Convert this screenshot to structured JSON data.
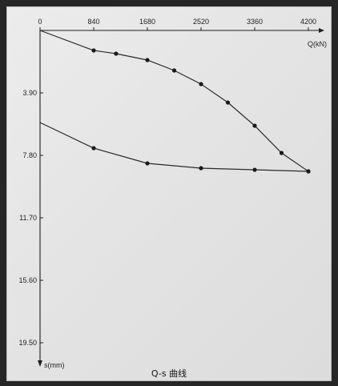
{
  "chart_data": {
    "type": "line",
    "title": "Q-s 曲线",
    "xlabel": "Q(kN)",
    "ylabel": "s(mm)",
    "x_ticks": [
      "0",
      "840",
      "1680",
      "2520",
      "3360",
      "4200"
    ],
    "y_ticks": [
      "3.90",
      "7.80",
      "11.70",
      "15.60",
      "19.50"
    ],
    "xlim": [
      0,
      4200
    ],
    "ylim": [
      0,
      19.5
    ],
    "x_axis_position": "top",
    "y_axis_inverted": true,
    "grid": false,
    "series": [
      {
        "values": [
          {
            "x": 0,
            "y": 0
          },
          {
            "x": 840,
            "y": 1.25
          },
          {
            "x": 1190,
            "y": 1.45
          },
          {
            "x": 1680,
            "y": 1.85
          },
          {
            "x": 2100,
            "y": 2.5
          },
          {
            "x": 2520,
            "y": 3.35
          },
          {
            "x": 2940,
            "y": 4.5
          },
          {
            "x": 3360,
            "y": 5.95
          },
          {
            "x": 3780,
            "y": 7.65
          },
          {
            "x": 4200,
            "y": 8.8
          }
        ]
      },
      {
        "values": [
          {
            "x": 4200,
            "y": 8.8
          },
          {
            "x": 3360,
            "y": 8.7
          },
          {
            "x": 2520,
            "y": 8.6
          },
          {
            "x": 1680,
            "y": 8.3
          },
          {
            "x": 840,
            "y": 7.35
          },
          {
            "x": 0,
            "y": 5.75
          }
        ]
      }
    ],
    "colors": {
      "line": "#2a2a2a",
      "marker": "#1a1a1a",
      "axis": "#1e1e1e"
    }
  }
}
